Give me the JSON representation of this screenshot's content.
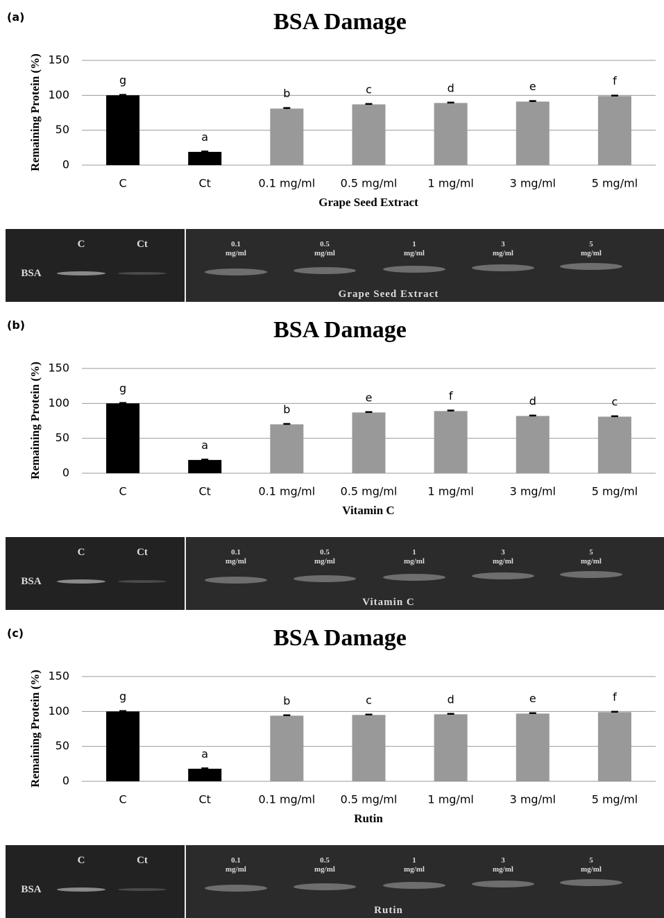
{
  "chart_data": [
    {
      "type": "bar",
      "panel_label": "(a)",
      "title": "BSA Damage",
      "y_label": "Remaining Protein (%)",
      "x_label": "Grape Seed Extract",
      "categories": [
        "C",
        "Ct",
        "0.1 mg/ml",
        "0.5 mg/ml",
        "1 mg/ml",
        "3 mg/ml",
        "5 mg/ml"
      ],
      "values": [
        100,
        19,
        81,
        87,
        89,
        91,
        99
      ],
      "errors": [
        0.6,
        0.6,
        0.8,
        0.6,
        0.6,
        0.8,
        0.6
      ],
      "colors": [
        "#000000",
        "#000000",
        "#999999",
        "#999999",
        "#999999",
        "#999999",
        "#999999"
      ],
      "annotations": [
        "g",
        "a",
        "b",
        "c",
        "d",
        "e",
        "f"
      ],
      "ylim": [
        0,
        150
      ],
      "yticks": [
        0,
        50,
        100,
        150
      ],
      "grid": true
    },
    {
      "type": "bar",
      "panel_label": "(b)",
      "title": "BSA Damage",
      "y_label": "Remaining Protein (%)",
      "x_label": "Vitamin C",
      "categories": [
        "C",
        "Ct",
        "0.1 mg/ml",
        "0.5 mg/ml",
        "1 mg/ml",
        "3 mg/ml",
        "5 mg/ml"
      ],
      "values": [
        100,
        19,
        70,
        87,
        89,
        82,
        81
      ],
      "errors": [
        0.6,
        0.6,
        0.6,
        0.6,
        0.8,
        0.6,
        0.6
      ],
      "colors": [
        "#000000",
        "#000000",
        "#999999",
        "#999999",
        "#999999",
        "#999999",
        "#999999"
      ],
      "annotations": [
        "g",
        "a",
        "b",
        "e",
        "f",
        "d",
        "c"
      ],
      "ylim": [
        0,
        150
      ],
      "yticks": [
        0,
        50,
        100,
        150
      ],
      "grid": true
    },
    {
      "type": "bar",
      "panel_label": "(c)",
      "title": "BSA Damage",
      "y_label": "Remaining Protein (%)",
      "x_label": "Rutin",
      "categories": [
        "C",
        "Ct",
        "0.1 mg/ml",
        "0.5 mg/ml",
        "1 mg/ml",
        "3 mg/ml",
        "5 mg/ml"
      ],
      "values": [
        100,
        18,
        94,
        95,
        96,
        97,
        99
      ],
      "errors": [
        0.6,
        0.6,
        0.6,
        0.6,
        0.6,
        0.6,
        0.6
      ],
      "colors": [
        "#000000",
        "#000000",
        "#999999",
        "#999999",
        "#999999",
        "#999999",
        "#999999"
      ],
      "annotations": [
        "g",
        "a",
        "b",
        "c",
        "d",
        "e",
        "f"
      ],
      "ylim": [
        0,
        150
      ],
      "yticks": [
        0,
        50,
        100,
        150
      ],
      "grid": true
    }
  ],
  "gels": [
    {
      "lanes": [
        "C",
        "Ct"
      ],
      "conc_lanes": [
        [
          "0.1",
          "mg/ml"
        ],
        [
          "0.5",
          "mg/ml"
        ],
        [
          "1",
          "mg/ml"
        ],
        [
          "3",
          "mg/ml"
        ],
        [
          "5",
          "mg/ml"
        ]
      ],
      "band_label": "BSA",
      "caption": "Grape Seed Extract"
    },
    {
      "lanes": [
        "C",
        "Ct"
      ],
      "conc_lanes": [
        [
          "0.1",
          "mg/ml"
        ],
        [
          "0.5",
          "mg/ml"
        ],
        [
          "1",
          "mg/ml"
        ],
        [
          "3",
          "mg/ml"
        ],
        [
          "5",
          "mg/ml"
        ]
      ],
      "band_label": "BSA",
      "caption": "Vitamin C"
    },
    {
      "lanes": [
        "C",
        "Ct"
      ],
      "conc_lanes": [
        [
          "0.1",
          "mg/ml"
        ],
        [
          "0.5",
          "mg/ml"
        ],
        [
          "1",
          "mg/ml"
        ],
        [
          "3",
          "mg/ml"
        ],
        [
          "5",
          "mg/ml"
        ]
      ],
      "band_label": "BSA",
      "caption": "Rutin"
    }
  ]
}
